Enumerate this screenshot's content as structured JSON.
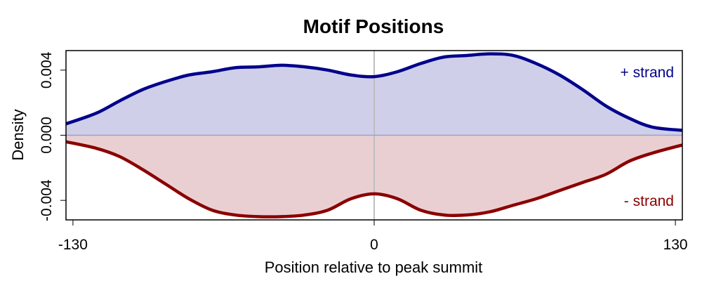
{
  "chart_data": {
    "type": "area",
    "title": "Motif Positions",
    "xlabel": "Position relative to peak summit",
    "ylabel": "Density",
    "xlim": [
      -133,
      133
    ],
    "ylim": [
      -0.0052,
      0.0052
    ],
    "x_ticks": [
      -130,
      0,
      130
    ],
    "y_ticks": [
      -0.004,
      0.0,
      0.004
    ],
    "x_tick_labels": [
      "-130",
      "0",
      "130"
    ],
    "y_tick_labels": [
      "-0.004",
      "0.000",
      "0.004"
    ],
    "grid": false,
    "reference_lines": [
      {
        "axis": "x",
        "value": 0
      },
      {
        "axis": "y",
        "value": 0
      }
    ],
    "series": [
      {
        "name": "+ strand",
        "color": "#00008B",
        "fill": "#CFCFEA",
        "x": [
          -133,
          -120,
          -110,
          -100,
          -90,
          -80,
          -70,
          -60,
          -50,
          -40,
          -30,
          -20,
          -10,
          0,
          10,
          20,
          30,
          40,
          50,
          60,
          70,
          80,
          90,
          100,
          110,
          120,
          133
        ],
        "y": [
          0.0007,
          0.00135,
          0.0021,
          0.0028,
          0.0033,
          0.0037,
          0.0039,
          0.00415,
          0.0042,
          0.0043,
          0.0042,
          0.004,
          0.0037,
          0.0036,
          0.0039,
          0.0044,
          0.0048,
          0.0049,
          0.005,
          0.0049,
          0.0044,
          0.0037,
          0.0028,
          0.0018,
          0.00105,
          0.0005,
          0.0003
        ]
      },
      {
        "name": "- strand",
        "color": "#8B0000",
        "fill": "#EACFD2",
        "x": [
          -133,
          -120,
          -110,
          -100,
          -90,
          -80,
          -70,
          -60,
          -50,
          -40,
          -30,
          -20,
          -10,
          0,
          10,
          20,
          30,
          40,
          50,
          60,
          70,
          80,
          90,
          100,
          110,
          120,
          133
        ],
        "y": [
          -0.0004,
          -0.0008,
          -0.0013,
          -0.0021,
          -0.003,
          -0.0039,
          -0.0046,
          -0.0049,
          -0.005,
          -0.005,
          -0.0049,
          -0.0046,
          -0.0039,
          -0.0036,
          -0.0039,
          -0.0046,
          -0.0049,
          -0.0049,
          -0.0047,
          -0.0043,
          -0.0039,
          -0.0034,
          -0.0029,
          -0.0024,
          -0.0016,
          -0.0011,
          -0.0006
        ]
      }
    ],
    "legend": {
      "placement": "inside-right"
    }
  }
}
